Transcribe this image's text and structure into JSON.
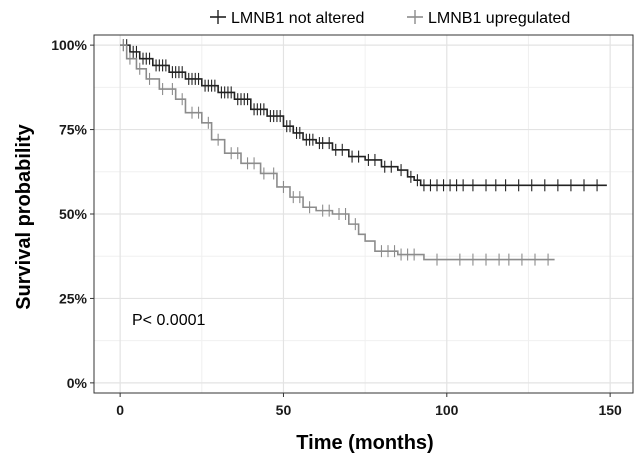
{
  "chart_data": {
    "type": "line",
    "step": true,
    "xlabel": "Time (months)",
    "ylabel": "Survival probability",
    "xlim": [
      -8,
      157
    ],
    "ylim": [
      -0.03,
      1.03
    ],
    "x_ticks": [
      0,
      50,
      100,
      150
    ],
    "y_ticks": [
      0,
      0.25,
      0.5,
      0.75,
      1.0
    ],
    "y_tick_labels": [
      "0%",
      "25%",
      "50%",
      "75%",
      "100%"
    ],
    "grid": true,
    "legend_position": "top",
    "annotation": "P< 0.0001",
    "series": [
      {
        "name": "LMNB1 not altered",
        "color": "#222222",
        "x": [
          0,
          3,
          6,
          10,
          15,
          20,
          25,
          30,
          35,
          40,
          45,
          50,
          53,
          56,
          60,
          65,
          70,
          75,
          80,
          85,
          88,
          90,
          92,
          100,
          110,
          120,
          130,
          140,
          149
        ],
        "y": [
          1.0,
          0.98,
          0.96,
          0.94,
          0.92,
          0.9,
          0.88,
          0.86,
          0.84,
          0.81,
          0.79,
          0.76,
          0.74,
          0.72,
          0.71,
          0.69,
          0.67,
          0.66,
          0.64,
          0.63,
          0.61,
          0.6,
          0.585,
          0.585,
          0.585,
          0.585,
          0.585,
          0.585,
          0.585
        ],
        "censor_x": [
          1,
          2,
          4,
          5,
          7,
          8,
          9,
          11,
          12,
          13,
          14,
          16,
          17,
          18,
          19,
          21,
          22,
          23,
          24,
          26,
          27,
          28,
          29,
          31,
          32,
          33,
          34,
          36,
          37,
          38,
          39,
          41,
          42,
          43,
          44,
          46,
          47,
          48,
          49,
          51,
          52,
          54,
          55,
          57,
          58,
          59,
          61,
          62,
          64,
          66,
          68,
          71,
          73,
          76,
          78,
          81,
          83,
          86,
          89,
          91,
          93,
          95,
          97,
          99,
          101,
          103,
          105,
          108,
          112,
          115,
          118,
          122,
          126,
          130,
          134,
          138,
          142,
          146
        ]
      },
      {
        "name": "LMNB1 upregulated",
        "color": "#8c8c8c",
        "x": [
          0,
          2,
          5,
          8,
          12,
          17,
          20,
          25,
          28,
          32,
          37,
          43,
          48,
          52,
          56,
          60,
          65,
          70,
          73,
          75,
          78,
          85,
          93,
          100,
          110,
          120,
          130,
          133
        ],
        "y": [
          1.0,
          0.96,
          0.93,
          0.9,
          0.87,
          0.84,
          0.8,
          0.77,
          0.72,
          0.68,
          0.65,
          0.62,
          0.58,
          0.55,
          0.52,
          0.51,
          0.5,
          0.47,
          0.44,
          0.42,
          0.39,
          0.38,
          0.365,
          0.365,
          0.365,
          0.365,
          0.365,
          0.365
        ],
        "censor_x": [
          1,
          3,
          6,
          9,
          13,
          16,
          19,
          22,
          24,
          27,
          30,
          34,
          36,
          39,
          41,
          44,
          47,
          50,
          53,
          55,
          58,
          62,
          64,
          67,
          69,
          72,
          80,
          82,
          84,
          86,
          88,
          90,
          97,
          104,
          108,
          112,
          116,
          119,
          123,
          127,
          131
        ]
      }
    ]
  }
}
